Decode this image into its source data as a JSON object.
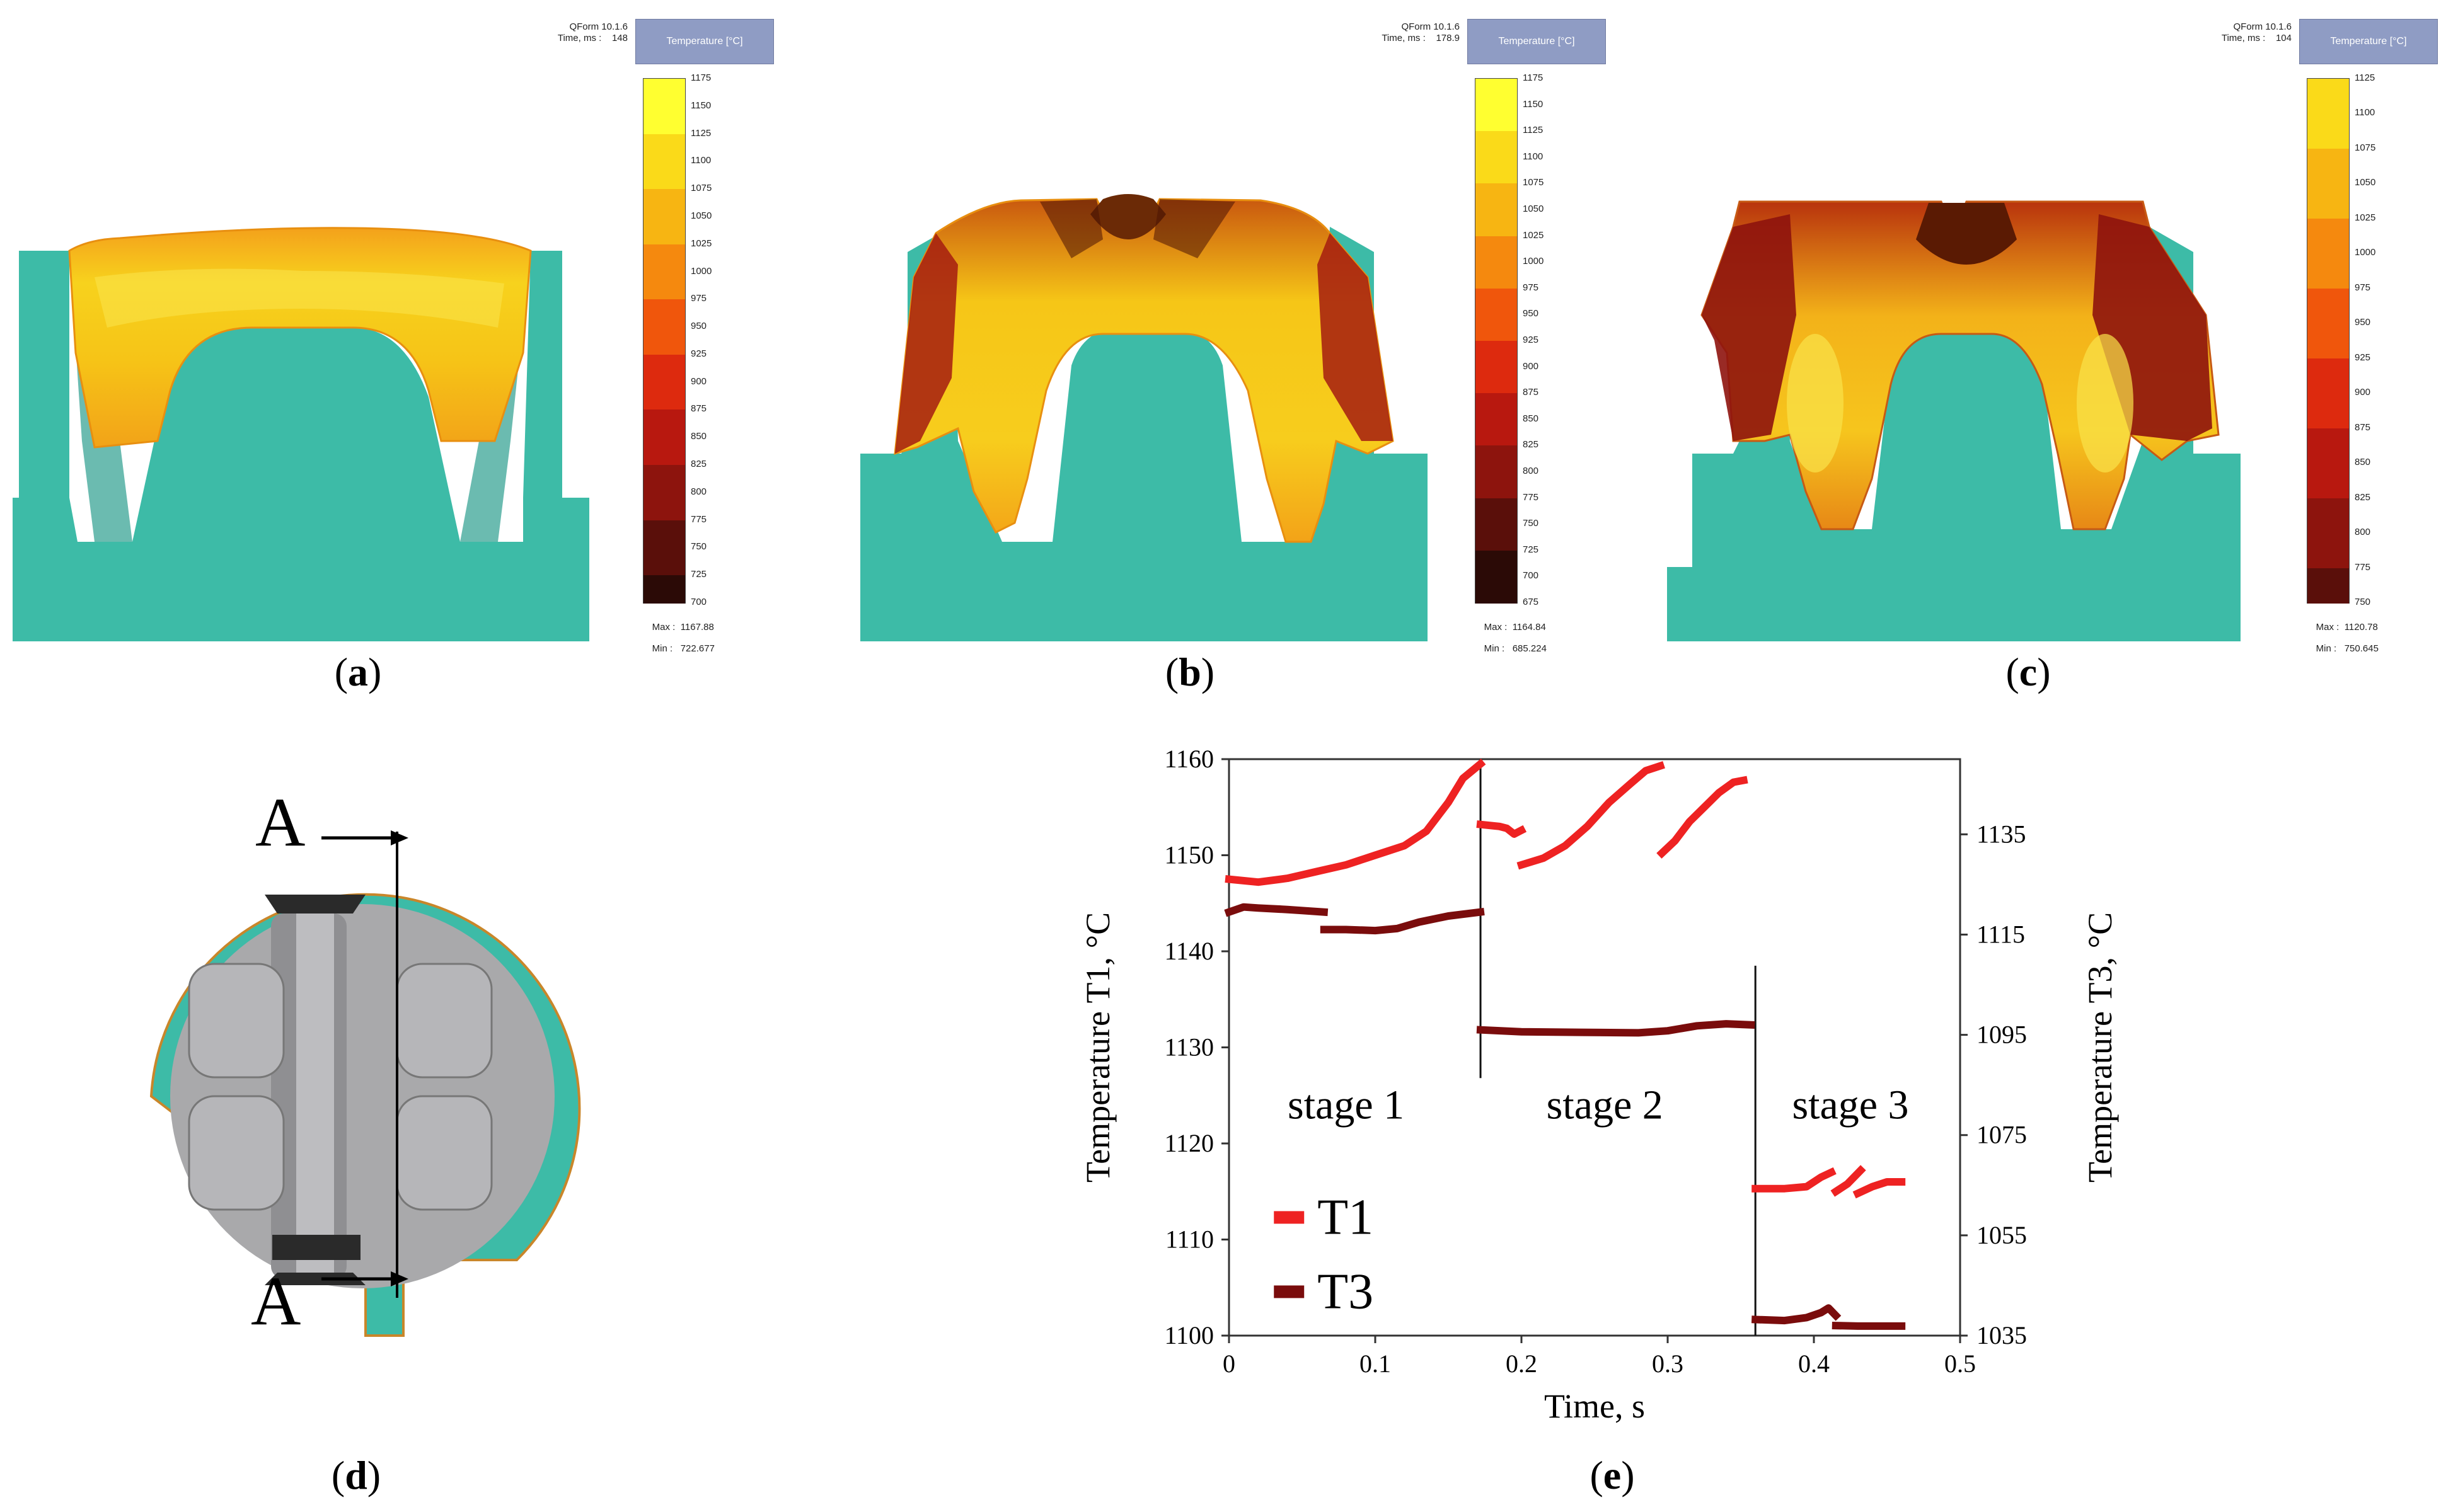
{
  "panels": {
    "a": {
      "caption_letter": "a",
      "software": "QForm 10.1.6",
      "time_label": "Time, ms :",
      "time_value": "148",
      "field_label": "Temperature [°C]",
      "scale": [
        "1175",
        "1150",
        "1125",
        "1100",
        "1075",
        "1050",
        "1025",
        "1000",
        "975",
        "950",
        "925",
        "900",
        "875",
        "850",
        "825",
        "800",
        "775",
        "750",
        "725",
        "700"
      ],
      "max_label": "Max :",
      "max_value": "1167.88",
      "min_label": "Min :",
      "min_value": "722.677"
    },
    "b": {
      "caption_letter": "b",
      "software": "QForm 10.1.6",
      "time_label": "Time, ms :",
      "time_value": "178.9",
      "field_label": "Temperature [°C]",
      "scale": [
        "1175",
        "1150",
        "1125",
        "1100",
        "1075",
        "1050",
        "1025",
        "1000",
        "975",
        "950",
        "925",
        "900",
        "875",
        "850",
        "825",
        "800",
        "775",
        "750",
        "725",
        "700",
        "675"
      ],
      "max_label": "Max :",
      "max_value": "1164.84",
      "min_label": "Min :",
      "min_value": "685.224"
    },
    "c": {
      "caption_letter": "c",
      "software": "QForm 10.1.6",
      "time_label": "Time, ms :",
      "time_value": "104",
      "field_label": "Temperature [°C]",
      "scale": [
        "1125",
        "1100",
        "1075",
        "1050",
        "1025",
        "1000",
        "975",
        "950",
        "925",
        "900",
        "875",
        "850",
        "825",
        "800",
        "775",
        "750"
      ],
      "max_label": "Max :",
      "max_value": "1120.78",
      "min_label": "Min :",
      "min_value": "750.645"
    },
    "d": {
      "caption_letter": "d",
      "section_label_top": "A",
      "section_label_bottom": "A"
    }
  },
  "chart_data": {
    "type": "scatter",
    "caption_letter": "e",
    "xlabel": "Time, s",
    "ylabel_left": "Temperature T1, °C",
    "ylabel_right": "Temperature T3, °C",
    "xlim": [
      0,
      0.5
    ],
    "ylim_left": [
      1100,
      1160
    ],
    "ylim_right": [
      1035,
      1150
    ],
    "x_ticks": [
      "0",
      "0.1",
      "0.2",
      "0.3",
      "0.4",
      "0.5"
    ],
    "x_tick_values": [
      0,
      0.1,
      0.2,
      0.3,
      0.4,
      0.5
    ],
    "yl_ticks": [
      "1100",
      "1110",
      "1120",
      "1130",
      "1140",
      "1150",
      "1160"
    ],
    "yl_tick_values": [
      1100,
      1110,
      1120,
      1130,
      1140,
      1150,
      1160
    ],
    "yr_ticks": [
      "1035",
      "1055",
      "1075",
      "1095",
      "1115",
      "1135"
    ],
    "yr_tick_values": [
      1035,
      1055,
      1075,
      1095,
      1115,
      1135
    ],
    "stage_boundaries": [
      0.172,
      0.36
    ],
    "stages": [
      {
        "label": "stage 1",
        "x": 0.08
      },
      {
        "label": "stage 2",
        "x": 0.257
      },
      {
        "label": "stage 3",
        "x": 0.425
      }
    ],
    "legend": [
      {
        "name": "T1",
        "color": "#ee2222"
      },
      {
        "name": "T3",
        "color": "#7a0c0c"
      }
    ],
    "series": [
      {
        "name": "T1",
        "axis": "left",
        "color": "#ee2222",
        "segments": [
          [
            [
              0,
              1147.5
            ],
            [
              0.02,
              1147.2
            ],
            [
              0.04,
              1147.6
            ],
            [
              0.06,
              1148.3
            ],
            [
              0.08,
              1149.0
            ],
            [
              0.1,
              1150.0
            ],
            [
              0.12,
              1151.0
            ],
            [
              0.135,
              1152.5
            ],
            [
              0.15,
              1155.5
            ],
            [
              0.16,
              1158.0
            ],
            [
              0.172,
              1159.5
            ]
          ],
          [
            [
              0.172,
              1153.2
            ],
            [
              0.185,
              1153.0
            ],
            [
              0.19,
              1152.8
            ],
            [
              0.195,
              1152.2
            ],
            [
              0.2,
              1152.6
            ]
          ],
          [
            [
              0.2,
              1149.0
            ],
            [
              0.215,
              1149.7
            ],
            [
              0.23,
              1151.0
            ],
            [
              0.245,
              1153.0
            ],
            [
              0.26,
              1155.5
            ],
            [
              0.275,
              1157.5
            ],
            [
              0.285,
              1158.8
            ],
            [
              0.295,
              1159.3
            ]
          ],
          [
            [
              0.296,
              1150.2
            ],
            [
              0.305,
              1151.5
            ],
            [
              0.315,
              1153.5
            ],
            [
              0.325,
              1155.0
            ],
            [
              0.335,
              1156.5
            ],
            [
              0.345,
              1157.6
            ],
            [
              0.352,
              1157.8
            ]
          ],
          [
            [
              0.36,
              1115.3
            ],
            [
              0.38,
              1115.3
            ],
            [
              0.395,
              1115.5
            ],
            [
              0.405,
              1116.5
            ],
            [
              0.412,
              1117.0
            ]
          ],
          [
            [
              0.415,
              1115.0
            ],
            [
              0.423,
              1115.8
            ],
            [
              0.432,
              1117.2
            ]
          ],
          [
            [
              0.43,
              1114.8
            ],
            [
              0.44,
              1115.5
            ],
            [
              0.45,
              1116.0
            ],
            [
              0.46,
              1116.0
            ]
          ]
        ]
      },
      {
        "name": "T3",
        "axis": "right",
        "color": "#7a0c0c",
        "segments": [
          [
            [
              0,
              1119.5
            ],
            [
              0.01,
              1120.5
            ],
            [
              0.02,
              1120.3
            ],
            [
              0.04,
              1120.0
            ],
            [
              0.05,
              1119.8
            ],
            [
              0.065,
              1119.5
            ]
          ],
          [
            [
              0.065,
              1116.0
            ],
            [
              0.08,
              1116.0
            ],
            [
              0.1,
              1115.8
            ],
            [
              0.115,
              1116.2
            ],
            [
              0.13,
              1117.5
            ],
            [
              0.15,
              1118.7
            ],
            [
              0.172,
              1119.5
            ]
          ],
          [
            [
              0.172,
              1096.0
            ],
            [
              0.2,
              1095.6
            ],
            [
              0.24,
              1095.5
            ],
            [
              0.28,
              1095.4
            ],
            [
              0.3,
              1095.8
            ],
            [
              0.32,
              1096.8
            ],
            [
              0.34,
              1097.2
            ],
            [
              0.357,
              1097.0
            ]
          ],
          [
            [
              0.36,
              1038.2
            ],
            [
              0.38,
              1038.0
            ],
            [
              0.395,
              1038.6
            ],
            [
              0.405,
              1039.6
            ],
            [
              0.41,
              1040.5
            ],
            [
              0.415,
              1039.0
            ]
          ],
          [
            [
              0.415,
              1037.0
            ],
            [
              0.43,
              1036.9
            ],
            [
              0.45,
              1036.9
            ],
            [
              0.46,
              1036.9
            ]
          ]
        ]
      }
    ]
  }
}
